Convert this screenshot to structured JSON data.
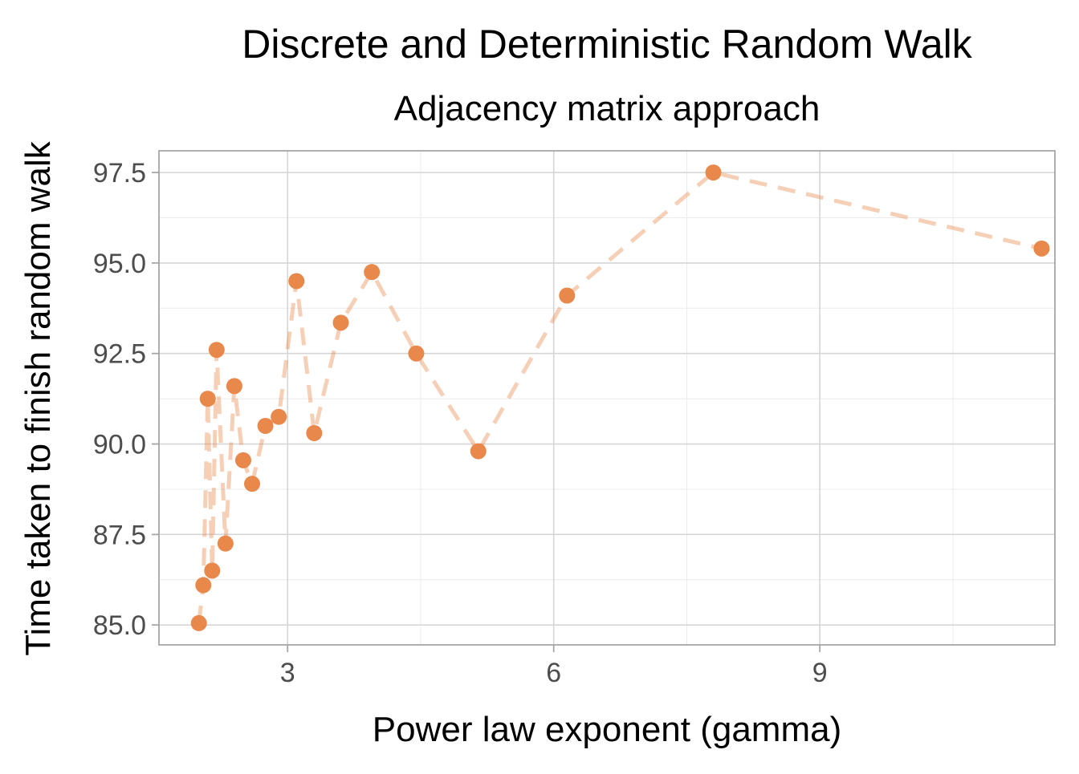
{
  "chart_data": {
    "type": "line",
    "title": "Discrete and Deterministic Random Walk",
    "subtitle": "Adjacency matrix approach",
    "xlabel": "Power law exponent (gamma)",
    "ylabel": "Time taken to finish random walk",
    "xlim": [
      1.55,
      11.65
    ],
    "ylim": [
      84.45,
      98.1
    ],
    "x_ticks": [
      3,
      6,
      9
    ],
    "x_tick_labels": [
      "3",
      "6",
      "9"
    ],
    "y_ticks": [
      85.0,
      87.5,
      90.0,
      92.5,
      95.0,
      97.5
    ],
    "y_tick_labels": [
      "85.0",
      "87.5",
      "90.0",
      "92.5",
      "95.0",
      "97.5"
    ],
    "grid": true,
    "legend": "none",
    "colors": {
      "point": "#E8884A",
      "line": "#E8884A"
    },
    "series": [
      {
        "x": [
          2.0,
          2.05,
          2.1,
          2.15,
          2.2,
          2.3,
          2.4,
          2.5,
          2.6,
          2.75,
          2.9,
          3.1,
          3.3,
          3.6,
          3.95,
          4.45,
          5.15,
          6.15,
          7.8,
          11.5
        ],
        "y": [
          85.05,
          86.1,
          91.25,
          86.5,
          92.6,
          87.25,
          91.6,
          89.55,
          88.9,
          90.5,
          90.75,
          94.5,
          90.3,
          93.35,
          94.75,
          92.5,
          89.8,
          94.1,
          97.5,
          95.4
        ]
      }
    ]
  }
}
